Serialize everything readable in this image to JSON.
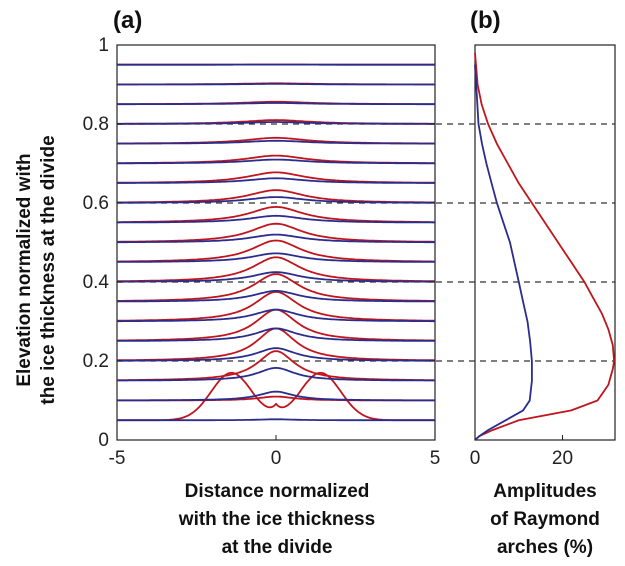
{
  "figure": {
    "panel_a_label": "(a)",
    "panel_b_label": "(b)",
    "colors": {
      "red": "#c0151c",
      "blue": "#2a2d8c",
      "dashed": "#333333",
      "axis": "#222222"
    }
  },
  "chart_data": [
    {
      "type": "line",
      "panel": "(a)",
      "xlabel": [
        "Distance normalized",
        "with the ice thickness",
        "at the divide"
      ],
      "ylabel": [
        "Elevation normalized with",
        "the ice thickness at the divide"
      ],
      "xlim": [
        -5,
        5
      ],
      "ylim": [
        0,
        1
      ],
      "xticks": [
        "-5",
        "0",
        "5"
      ],
      "yticks": [
        "0",
        "0.2",
        "0.4",
        "0.6",
        "0.8",
        "1"
      ],
      "dashed_reference_levels": [
        0.2,
        0.4,
        0.6,
        0.8
      ],
      "series": [
        {
          "color": "#c0151c",
          "base_levels": [
            0.05,
            0.1,
            0.15,
            0.2,
            0.25,
            0.3,
            0.35,
            0.4,
            0.45,
            0.5,
            0.55,
            0.6,
            0.65,
            0.7,
            0.75,
            0.8,
            0.85,
            0.9,
            0.95
          ],
          "peak_amplitude_percent": [
            1,
            4,
            30,
            33,
            32,
            30,
            28,
            25,
            22,
            19,
            16,
            13,
            11,
            8,
            6,
            4,
            2.5,
            1.2,
            0.3
          ],
          "double_peak_at_level": 0.05,
          "side_peak_x": 1.4,
          "side_peak_height": 0.12
        },
        {
          "color": "#2a2d8c",
          "base_levels": [
            0.05,
            0.1,
            0.15,
            0.2,
            0.25,
            0.3,
            0.35,
            0.4,
            0.45,
            0.5,
            0.55,
            0.6,
            0.65,
            0.7,
            0.75,
            0.8,
            0.85,
            0.9,
            0.95
          ],
          "peak_amplitude_percent": [
            1,
            9,
            13,
            13,
            13,
            12,
            11,
            10,
            9,
            8,
            7,
            6,
            5,
            4,
            3,
            2,
            1.3,
            0.6,
            0.2
          ]
        }
      ]
    },
    {
      "type": "line",
      "panel": "(b)",
      "xlabel": [
        "Amplitudes",
        "of Raymond",
        "arches (%)"
      ],
      "xlim": [
        0,
        32
      ],
      "ylim": [
        0,
        1
      ],
      "xticks": [
        "0",
        "20"
      ],
      "series": [
        {
          "color": "#c0151c",
          "x": [
            0,
            1,
            4,
            10,
            22,
            28,
            30.5,
            31.5,
            31.8,
            31.5,
            30.5,
            29,
            27,
            25,
            22,
            19,
            16,
            13,
            10,
            7.5,
            5,
            3,
            1.5,
            0.6,
            0
          ],
          "y": [
            0,
            0.01,
            0.025,
            0.05,
            0.075,
            0.1,
            0.14,
            0.18,
            0.2,
            0.24,
            0.28,
            0.32,
            0.36,
            0.4,
            0.45,
            0.5,
            0.55,
            0.6,
            0.65,
            0.7,
            0.75,
            0.8,
            0.85,
            0.9,
            0.98
          ]
        },
        {
          "color": "#2a2d8c",
          "x": [
            0,
            1,
            3,
            7,
            11,
            12.5,
            13,
            13,
            12.6,
            12,
            11,
            10,
            9,
            8,
            6.5,
            5,
            3.8,
            2.6,
            1.6,
            0.8,
            0
          ],
          "y": [
            0,
            0.01,
            0.025,
            0.05,
            0.075,
            0.1,
            0.15,
            0.2,
            0.25,
            0.3,
            0.35,
            0.4,
            0.45,
            0.5,
            0.55,
            0.6,
            0.65,
            0.7,
            0.75,
            0.8,
            0.95
          ]
        }
      ]
    }
  ]
}
